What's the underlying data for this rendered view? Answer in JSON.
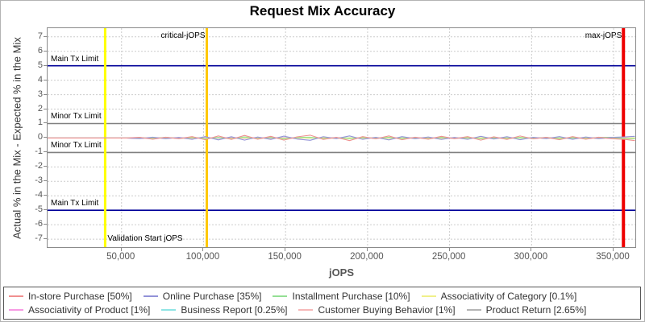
{
  "page": {
    "title": "Request Mix Accuracy"
  },
  "chart_data": {
    "type": "line",
    "title": "Request Mix Accuracy",
    "xlabel": "jOPS",
    "ylabel": "Actual % in the Mix - Expected % in the Mix",
    "xlim": [
      4900,
      363250
    ],
    "ylim": [
      -7.55,
      7.6
    ],
    "grid": true,
    "legend_position": "bottom",
    "y_ticks": [
      7,
      6,
      5,
      4,
      3,
      2,
      1,
      0,
      -1,
      -2,
      -3,
      -4,
      -5,
      -6,
      -7
    ],
    "x_ticks": [
      {
        "v": 50000,
        "label": "50,000"
      },
      {
        "v": 100000,
        "label": "100,000"
      },
      {
        "v": 150000,
        "label": "150,000"
      },
      {
        "v": 200000,
        "label": "200,000"
      },
      {
        "v": 250000,
        "label": "250,000"
      },
      {
        "v": 300000,
        "label": "300,000"
      },
      {
        "v": 350000,
        "label": "350,000"
      }
    ],
    "markers": [
      {
        "axis": "y",
        "value": 5,
        "color": "#000099",
        "width": 1.6,
        "label": "Main Tx Limit",
        "label_at": "left-above"
      },
      {
        "axis": "y",
        "value": 1,
        "color": "#808080",
        "width": 1.6,
        "label": "Minor Tx Limit",
        "label_at": "left-above"
      },
      {
        "axis": "y",
        "value": -1,
        "color": "#808080",
        "width": 1.6,
        "label": "Minor Tx Limit",
        "label_at": "left-above"
      },
      {
        "axis": "y",
        "value": -5,
        "color": "#000099",
        "width": 1.6,
        "label": "Main Tx Limit",
        "label_at": "left-above"
      },
      {
        "axis": "x",
        "value": 40000,
        "color": "#ffff00",
        "width": 3,
        "label": "Validation Start jOPS",
        "label_at": "bottom-start"
      },
      {
        "axis": "x",
        "value": 102000,
        "color": "#ffc800",
        "width": 3,
        "label": "critical-jOPS",
        "label_at": "top-end"
      },
      {
        "axis": "x",
        "value": 356000,
        "color": "#ee0000",
        "width": 4,
        "label": "max-jOPS",
        "label_at": "top-end"
      }
    ],
    "x": [
      5000,
      13000,
      21000,
      29000,
      37000,
      45000,
      53000,
      61000,
      69000,
      77000,
      85000,
      93000,
      101000,
      109000,
      117000,
      125000,
      133000,
      141000,
      149000,
      157000,
      165000,
      173000,
      181000,
      189000,
      197000,
      205000,
      213000,
      221000,
      229000,
      237000,
      245000,
      253000,
      261000,
      269000,
      277000,
      285000,
      293000,
      301000,
      309000,
      317000,
      325000,
      333000,
      341000,
      349000,
      357000,
      363000
    ],
    "series": [
      {
        "name": "In-store Purchase [50%]",
        "color": "#f08f8f",
        "values": [
          0,
          0,
          0,
          0,
          0,
          0,
          0,
          0.05,
          -0.08,
          0.06,
          -0.05,
          0.1,
          -0.12,
          0.15,
          -0.1,
          0.18,
          -0.08,
          0.12,
          -0.15,
          0.08,
          0.2,
          -0.1,
          0.05,
          -0.18,
          0.1,
          -0.06,
          0.15,
          -0.12,
          0.06,
          -0.08,
          0.12,
          -0.05,
          0.1,
          -0.15,
          0.08,
          -0.1,
          0.14,
          -0.06,
          0.05,
          -0.12,
          0.1,
          -0.08,
          0.06,
          -0.05,
          -0.1,
          -0.18
        ]
      },
      {
        "name": "Online Purchase [35%]",
        "color": "#9292d8",
        "values": [
          0,
          0,
          0,
          0,
          0,
          0,
          0,
          -0.04,
          0.06,
          -0.05,
          0.04,
          -0.09,
          0.1,
          -0.13,
          0.09,
          -0.15,
          0.07,
          -0.1,
          0.13,
          -0.07,
          -0.16,
          0.09,
          -0.04,
          0.15,
          -0.09,
          0.05,
          -0.13,
          0.1,
          -0.05,
          0.07,
          -0.1,
          0.04,
          -0.09,
          0.12,
          -0.07,
          0.09,
          -0.12,
          0.05,
          -0.04,
          0.1,
          -0.09,
          0.07,
          -0.05,
          0.04,
          0.08,
          0.12
        ]
      },
      {
        "name": "Installment Purchase [10%]",
        "color": "#94df94",
        "values": [
          0,
          0,
          0,
          0,
          0,
          0,
          0,
          0.03,
          -0.04,
          0.05,
          -0.03,
          0.06,
          -0.05,
          0.04,
          -0.06,
          0.08,
          -0.04,
          0.05,
          -0.07,
          0.04,
          0.06,
          -0.05,
          0.03,
          -0.06,
          0.05,
          -0.03,
          0.06,
          -0.04,
          0.03,
          -0.05,
          0.06,
          -0.03,
          0.04,
          -0.06,
          0.03,
          -0.04,
          0.05,
          -0.03,
          0.04,
          -0.05,
          0.03,
          -0.04,
          0.04,
          0.05,
          -0.04,
          -0.06
        ]
      },
      {
        "name": "Associativity of Category [0.1%]",
        "color": "#f0f08a",
        "values": [
          0,
          0,
          0,
          0,
          0,
          0,
          0,
          0.01,
          -0.01,
          0.02,
          -0.02,
          0.01,
          -0.01,
          0.02,
          -0.02,
          0.01,
          -0.01,
          0.02,
          -0.02,
          0.01,
          -0.01,
          0.02,
          -0.02,
          0.01,
          -0.01,
          0.02,
          -0.02,
          0.01,
          -0.01,
          0.02,
          -0.02,
          0.01,
          -0.01,
          0.02,
          -0.02,
          0.01,
          -0.01,
          0.02,
          -0.02,
          0.01,
          -0.01,
          0.02,
          -0.02,
          0.01,
          -0.01,
          0.01
        ]
      },
      {
        "name": "Associativity of Product [1%]",
        "color": "#f79ae4",
        "values": [
          0,
          0,
          0,
          0,
          0,
          0,
          0,
          -0.02,
          0.02,
          -0.01,
          0.01,
          -0.02,
          0.02,
          -0.01,
          0.01,
          -0.02,
          0.02,
          -0.01,
          0.01,
          -0.02,
          0.02,
          -0.01,
          0.01,
          -0.02,
          0.02,
          -0.01,
          0.01,
          -0.02,
          0.02,
          -0.01,
          0.01,
          -0.02,
          0.02,
          -0.01,
          0.01,
          -0.02,
          0.02,
          -0.01,
          0.01,
          -0.02,
          0.02,
          -0.01,
          0.01,
          -0.02,
          0.02,
          -0.02
        ]
      },
      {
        "name": "Business Report [0.25%]",
        "color": "#8fe5e5",
        "values": [
          0,
          0,
          0,
          0,
          0,
          0,
          0,
          0.02,
          -0.02,
          0.03,
          -0.02,
          0.02,
          -0.02,
          0.03,
          -0.02,
          0.02,
          -0.02,
          0.03,
          -0.02,
          0.02,
          -0.02,
          0.03,
          -0.02,
          0.02,
          -0.02,
          0.03,
          -0.02,
          0.02,
          -0.02,
          0.03,
          -0.02,
          0.02,
          -0.02,
          0.03,
          -0.02,
          0.02,
          -0.02,
          0.03,
          -0.02,
          0.02,
          -0.02,
          0.03,
          -0.02,
          0.02,
          -0.03,
          0.02
        ]
      },
      {
        "name": "Customer Buying Behavior [1%]",
        "color": "#f6b8b8",
        "values": [
          0,
          0,
          0,
          0,
          0,
          0,
          0,
          0.03,
          -0.02,
          0.02,
          -0.03,
          0.03,
          -0.02,
          0.02,
          -0.03,
          0.03,
          -0.02,
          0.02,
          -0.03,
          0.03,
          -0.02,
          0.02,
          -0.03,
          0.03,
          -0.02,
          0.02,
          -0.03,
          0.03,
          -0.02,
          0.02,
          -0.03,
          0.03,
          -0.02,
          0.02,
          -0.03,
          0.03,
          -0.02,
          0.02,
          -0.03,
          0.03,
          -0.02,
          0.02,
          -0.03,
          0.03,
          -0.02,
          0.03
        ]
      },
      {
        "name": "Product Return [2.65%]",
        "color": "#b5b5b5",
        "values": [
          0,
          0,
          0,
          0,
          0,
          0,
          0,
          -0.03,
          0.02,
          -0.02,
          0.03,
          -0.03,
          0.02,
          -0.02,
          0.03,
          -0.03,
          0.02,
          -0.02,
          0.03,
          -0.03,
          0.02,
          -0.02,
          0.03,
          -0.03,
          0.02,
          -0.02,
          0.03,
          -0.03,
          0.02,
          -0.02,
          0.03,
          -0.03,
          0.02,
          -0.02,
          0.03,
          -0.03,
          0.02,
          -0.02,
          0.03,
          -0.03,
          0.02,
          -0.02,
          0.03,
          -0.03,
          0.03,
          -0.03
        ]
      }
    ],
    "legend_rows": [
      [
        0,
        1,
        2,
        3
      ],
      [
        4,
        5,
        6,
        7
      ]
    ]
  }
}
